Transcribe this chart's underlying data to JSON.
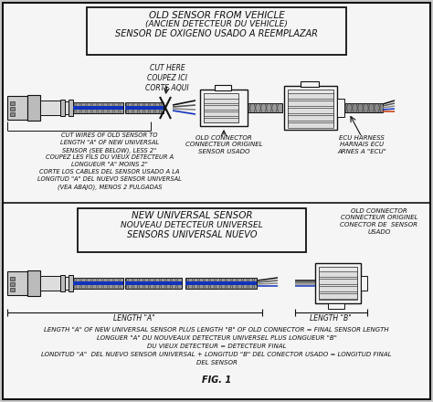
{
  "title_top_line1": "OLD SENSOR FROM VEHICLE",
  "title_top_line2": "(ANCIEN DETECTEUR DU VEHICLE)",
  "title_top_line3": "SENSOR DE OXIGENO USADO A REEMPLAZAR",
  "title_bottom_line1": "NEW UNIVERSAL SENSOR",
  "title_bottom_line2": "NOUVEAU DETECTEUR UNIVERSEL",
  "title_bottom_line3": "SENSORS UNIVERSAL NUEVO",
  "cut_here_text": "CUT HERE\nCOUPEZ ICI\nCORTE AQUI",
  "cut_wires_line1": "CUT WIRES OF OLD SENSOR TO",
  "cut_wires_line2": "LENGTH \"A\" OF NEW UNIVERSAL",
  "cut_wires_line3": "SENSOR (SEE BELOW), LESS 2\"",
  "cut_wires_line4": "COUPEZ LES FILS DU VIEUX DETECTEUR A",
  "cut_wires_line5": "LONGUEUR \"A\" MOINS 2\"",
  "cut_wires_line6": "CORTE LOS CABLES DEL SENSOR USADO A LA",
  "cut_wires_line7": "LONGITUD \"A\" DEL NUEVO SENSOR UNIVERSAL",
  "cut_wires_line8": "(VEA ABAJO), MENOS 2 PULGADAS",
  "old_connector_text": "OLD CONNECTOR\nCONNECTEUR ORIGINEL\nSENSOR USADO",
  "ecu_harness_text": "ECU HARNESS\nHARNAIS ECU\nARNES A \"ECU\"",
  "old_connector2_text": "OLD CONNECTOR\nCONNECTEUR ORIGINEL\nCONECTOR DE  SENSOR\nUSADO",
  "length_a_text": "LENGTH \"A\"",
  "length_b_text": "LENGTH \"B\"",
  "footer_line1": "LENGTH \"A\" OF NEW UNIVERSAL SENSOR PLUS LENGTH \"B\" OF OLD CONNECTOR = FINAL SENSOR LENGTH",
  "footer_line2": "LONGUER \"A\" DU NOUVEAUX DETECTEUR UNIVERSEL PLUS LONGUEUR \"B\"",
  "footer_line3": "DU VIEUX DETECTEUR = DETECTEUR FINAL",
  "footer_line4": "LONDITUD \"A\"  DEL NUEVO SENSOR UNIVERSAL + LONGITUD \"B\" DEL CONECTOR USADO = LONGITUD FINAL",
  "footer_line5": "DEL SENSOR",
  "fig_label": "FIG. 1",
  "bg_color": "#c8c8c8",
  "fg_color": "#111111",
  "white": "#f5f5f5",
  "braid_dark": "#555555",
  "braid_light": "#999999",
  "blue_wire": "#1133bb",
  "metal_light": "#dddddd",
  "metal_mid": "#bbbbbb",
  "connector_fill": "#e8e8e8"
}
